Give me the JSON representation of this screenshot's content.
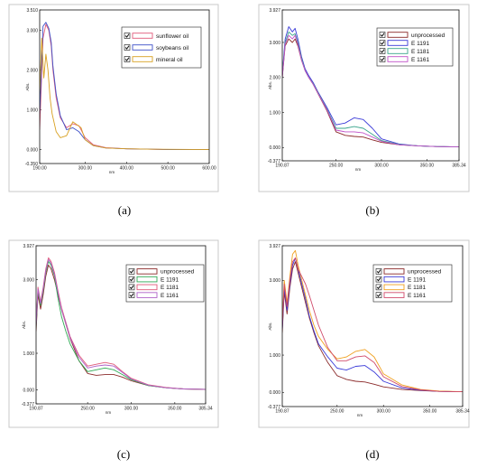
{
  "chart_data": [
    {
      "type": "line",
      "caption": "(a)",
      "ylabel": "Abs.",
      "xlabel": "nm",
      "xlim": [
        190.0,
        600.0
      ],
      "ylim": [
        -0.35,
        3.51
      ],
      "xticks": [
        {
          "v": 190.0,
          "label": "190.00"
        },
        {
          "v": 300.0,
          "label": "300.00"
        },
        {
          "v": 400.0,
          "label": "400.00"
        },
        {
          "v": 500.0,
          "label": "500.00"
        },
        {
          "v": 600.0,
          "label": "600.00"
        }
      ],
      "yticks": [
        {
          "v": 3.51,
          "label": "3.510"
        },
        {
          "v": 3.0,
          "label": "3.000"
        },
        {
          "v": 2.0,
          "label": "2.000"
        },
        {
          "v": 1.0,
          "label": "1.000"
        },
        {
          "v": 0.0,
          "label": "0.000"
        },
        {
          "v": -0.35,
          "label": "-0.350"
        }
      ],
      "series": [
        {
          "name": "sunflower oil",
          "color": "#e05a7a",
          "x": [
            190,
            198,
            205,
            212,
            218,
            222,
            230,
            240,
            255,
            270,
            285,
            300,
            320,
            350,
            400,
            450,
            500,
            600
          ],
          "y": [
            0.5,
            2.8,
            3.15,
            3.0,
            2.6,
            2.0,
            1.3,
            0.8,
            0.55,
            0.65,
            0.6,
            0.3,
            0.12,
            0.05,
            0.02,
            0.01,
            0.0,
            0.0
          ]
        },
        {
          "name": "soybeans oil",
          "color": "#3f51c8",
          "x": [
            190,
            198,
            205,
            212,
            218,
            222,
            230,
            240,
            255,
            270,
            285,
            300,
            320,
            350,
            400,
            450,
            500,
            600
          ],
          "y": [
            0.9,
            3.1,
            3.2,
            3.05,
            2.7,
            2.1,
            1.4,
            0.85,
            0.5,
            0.55,
            0.45,
            0.25,
            0.1,
            0.04,
            0.02,
            0.01,
            0.0,
            0.0
          ]
        },
        {
          "name": "mineral oil",
          "color": "#d8a020",
          "x": [
            190,
            195,
            200,
            205,
            210,
            215,
            220,
            230,
            240,
            255,
            270,
            290,
            300,
            320,
            350,
            400,
            450,
            600
          ],
          "y": [
            1.4,
            2.8,
            1.8,
            2.4,
            2.0,
            1.3,
            0.9,
            0.45,
            0.3,
            0.35,
            0.7,
            0.55,
            0.25,
            0.1,
            0.04,
            0.02,
            0.01,
            0.0
          ]
        }
      ]
    },
    {
      "type": "line",
      "caption": "(b)",
      "ylabel": "Abs.",
      "xlabel": "nm",
      "xlim": [
        190.87,
        385.34
      ],
      "ylim": [
        -0.377,
        3.927
      ],
      "xticks": [
        {
          "v": 190.87,
          "label": "190.87"
        },
        {
          "v": 250.0,
          "label": "250.00"
        },
        {
          "v": 300.0,
          "label": "300.00"
        },
        {
          "v": 350.0,
          "label": "350.00"
        },
        {
          "v": 385.34,
          "label": "385.34"
        }
      ],
      "yticks": [
        {
          "v": 3.927,
          "label": "3.927"
        },
        {
          "v": 3.0,
          "label": "3.000"
        },
        {
          "v": 2.0,
          "label": "2.000"
        },
        {
          "v": 1.0,
          "label": "1.000"
        },
        {
          "v": 0.0,
          "label": "0.000"
        },
        {
          "v": -0.377,
          "label": "-0.377"
        }
      ],
      "series": [
        {
          "name": "unprocessed",
          "color": "#8b2a2a",
          "x": [
            190.87,
            194,
            198,
            202,
            205,
            208,
            212,
            216,
            220,
            225,
            230,
            240,
            250,
            260,
            270,
            280,
            290,
            300,
            320,
            340,
            360,
            385.34
          ],
          "y": [
            2.0,
            2.9,
            3.1,
            3.0,
            3.1,
            2.9,
            2.5,
            2.2,
            2.0,
            1.8,
            1.55,
            1.05,
            0.45,
            0.35,
            0.32,
            0.3,
            0.22,
            0.15,
            0.08,
            0.05,
            0.03,
            0.02
          ]
        },
        {
          "name": "E 1191",
          "color": "#3a3ad8",
          "x": [
            190.87,
            194,
            198,
            202,
            205,
            208,
            212,
            216,
            220,
            225,
            230,
            240,
            250,
            260,
            270,
            280,
            290,
            300,
            320,
            340,
            360,
            385.34
          ],
          "y": [
            2.1,
            3.1,
            3.45,
            3.3,
            3.4,
            3.1,
            2.6,
            2.25,
            2.05,
            1.85,
            1.6,
            1.15,
            0.65,
            0.7,
            0.85,
            0.8,
            0.55,
            0.25,
            0.1,
            0.05,
            0.03,
            0.02
          ]
        },
        {
          "name": "E 1181",
          "color": "#3aa58c",
          "x": [
            190.87,
            194,
            198,
            202,
            205,
            208,
            212,
            216,
            220,
            225,
            230,
            240,
            250,
            260,
            270,
            280,
            290,
            300,
            320,
            340,
            360,
            385.34
          ],
          "y": [
            2.05,
            3.0,
            3.3,
            3.2,
            3.25,
            3.0,
            2.55,
            2.2,
            2.0,
            1.82,
            1.58,
            1.1,
            0.55,
            0.55,
            0.6,
            0.55,
            0.38,
            0.2,
            0.09,
            0.05,
            0.03,
            0.02
          ]
        },
        {
          "name": "E 1161",
          "color": "#c050c8",
          "x": [
            190.87,
            194,
            198,
            202,
            205,
            208,
            212,
            216,
            220,
            225,
            230,
            240,
            250,
            260,
            270,
            280,
            290,
            300,
            320,
            340,
            360,
            385.34
          ],
          "y": [
            2.0,
            2.95,
            3.2,
            3.1,
            3.2,
            2.95,
            2.5,
            2.2,
            2.0,
            1.8,
            1.56,
            1.08,
            0.5,
            0.45,
            0.45,
            0.42,
            0.3,
            0.18,
            0.08,
            0.05,
            0.03,
            0.02
          ]
        }
      ]
    },
    {
      "type": "line",
      "caption": "(c)",
      "ylabel": "Abs.",
      "xlabel": "nm",
      "xlim": [
        190.87,
        385.34
      ],
      "ylim": [
        -0.377,
        3.927
      ],
      "xticks": [
        {
          "v": 190.87,
          "label": "190.87"
        },
        {
          "v": 250.0,
          "label": "250.00"
        },
        {
          "v": 300.0,
          "label": "300.00"
        },
        {
          "v": 350.0,
          "label": "350.00"
        },
        {
          "v": 385.34,
          "label": "385.34"
        }
      ],
      "yticks": [
        {
          "v": 3.927,
          "label": "3.927"
        },
        {
          "v": 3.0,
          "label": "3.000"
        },
        {
          "v": 1.0,
          "label": "1.000"
        },
        {
          "v": 0.0,
          "label": "0.000"
        },
        {
          "v": -0.377,
          "label": "-0.377"
        }
      ],
      "series": [
        {
          "name": "unprocessed",
          "color": "#8b2a2a",
          "x": [
            190.87,
            193,
            196,
            199,
            202,
            205,
            208,
            212,
            216,
            220,
            225,
            230,
            240,
            250,
            260,
            270,
            280,
            290,
            300,
            320,
            340,
            360,
            385.34
          ],
          "y": [
            1.6,
            2.6,
            2.2,
            2.6,
            3.1,
            3.4,
            3.3,
            3.0,
            2.6,
            2.2,
            1.8,
            1.4,
            0.8,
            0.45,
            0.4,
            0.42,
            0.42,
            0.35,
            0.25,
            0.12,
            0.06,
            0.03,
            0.02
          ]
        },
        {
          "name": "E 1191",
          "color": "#2faa55",
          "x": [
            190.87,
            193,
            196,
            199,
            202,
            205,
            208,
            212,
            216,
            220,
            225,
            230,
            240,
            250,
            260,
            270,
            280,
            290,
            300,
            320,
            340,
            360,
            385.34
          ],
          "y": [
            1.7,
            2.7,
            2.3,
            2.7,
            3.2,
            3.5,
            3.4,
            3.1,
            2.5,
            2.0,
            1.6,
            1.25,
            0.8,
            0.5,
            0.55,
            0.6,
            0.55,
            0.42,
            0.28,
            0.12,
            0.06,
            0.03,
            0.02
          ]
        },
        {
          "name": "E 1181",
          "color": "#e05a7a",
          "x": [
            190.87,
            193,
            196,
            199,
            202,
            205,
            208,
            212,
            216,
            220,
            225,
            230,
            240,
            250,
            260,
            270,
            280,
            290,
            300,
            320,
            340,
            360,
            385.34
          ],
          "y": [
            1.8,
            2.8,
            2.4,
            2.8,
            3.3,
            3.6,
            3.5,
            3.2,
            2.7,
            2.25,
            1.85,
            1.45,
            0.95,
            0.65,
            0.7,
            0.75,
            0.7,
            0.5,
            0.32,
            0.14,
            0.07,
            0.03,
            0.02
          ]
        },
        {
          "name": "E 1161",
          "color": "#b060c8",
          "x": [
            190.87,
            193,
            196,
            199,
            202,
            205,
            208,
            212,
            216,
            220,
            225,
            230,
            240,
            250,
            260,
            270,
            280,
            290,
            300,
            320,
            340,
            360,
            385.34
          ],
          "y": [
            1.75,
            2.75,
            2.35,
            2.75,
            3.25,
            3.55,
            3.45,
            3.15,
            2.65,
            2.2,
            1.82,
            1.42,
            0.9,
            0.6,
            0.65,
            0.68,
            0.65,
            0.48,
            0.3,
            0.13,
            0.06,
            0.03,
            0.02
          ]
        }
      ]
    },
    {
      "type": "line",
      "caption": "(d)",
      "ylabel": "Abs.",
      "xlabel": "nm",
      "xlim": [
        190.87,
        385.34
      ],
      "ylim": [
        -0.377,
        3.927
      ],
      "xticks": [
        {
          "v": 190.87,
          "label": "190.87"
        },
        {
          "v": 250.0,
          "label": "250.00"
        },
        {
          "v": 300.0,
          "label": "300.00"
        },
        {
          "v": 350.0,
          "label": "350.00"
        },
        {
          "v": 385.34,
          "label": "385.34"
        }
      ],
      "yticks": [
        {
          "v": 3.927,
          "label": "3.927"
        },
        {
          "v": 3.0,
          "label": "3.000"
        },
        {
          "v": 1.0,
          "label": "1.000"
        },
        {
          "v": 0.0,
          "label": "0.000"
        },
        {
          "v": -0.377,
          "label": "-0.377"
        }
      ],
      "series": [
        {
          "name": "unprocessed",
          "color": "#8b2a2a",
          "x": [
            190.87,
            193,
            196,
            199,
            202,
            205,
            208,
            212,
            216,
            220,
            225,
            230,
            240,
            250,
            260,
            270,
            280,
            290,
            300,
            320,
            340,
            360,
            385.34
          ],
          "y": [
            1.6,
            2.7,
            2.1,
            2.8,
            3.3,
            3.5,
            3.2,
            2.8,
            2.4,
            2.0,
            1.6,
            1.25,
            0.8,
            0.45,
            0.35,
            0.3,
            0.28,
            0.22,
            0.15,
            0.08,
            0.05,
            0.03,
            0.02
          ]
        },
        {
          "name": "E 1191",
          "color": "#3a3ad8",
          "x": [
            190.87,
            193,
            196,
            199,
            202,
            205,
            208,
            212,
            216,
            220,
            225,
            230,
            240,
            250,
            260,
            270,
            280,
            290,
            300,
            320,
            340,
            360,
            385.34
          ],
          "y": [
            1.7,
            2.8,
            2.2,
            2.9,
            3.4,
            3.6,
            3.3,
            2.9,
            2.5,
            2.05,
            1.65,
            1.3,
            0.95,
            0.65,
            0.6,
            0.7,
            0.72,
            0.55,
            0.3,
            0.12,
            0.06,
            0.03,
            0.02
          ]
        },
        {
          "name": "E 1181",
          "color": "#f0a020",
          "x": [
            190.87,
            193,
            196,
            199,
            202,
            205,
            208,
            212,
            216,
            220,
            225,
            230,
            240,
            250,
            260,
            270,
            280,
            290,
            300,
            320,
            340,
            360,
            385.34
          ],
          "y": [
            1.9,
            3.0,
            2.4,
            3.1,
            3.7,
            3.8,
            3.4,
            3.0,
            2.6,
            2.2,
            1.8,
            1.5,
            1.15,
            0.9,
            0.95,
            1.1,
            1.15,
            0.95,
            0.5,
            0.2,
            0.08,
            0.04,
            0.02
          ]
        },
        {
          "name": "E 1161",
          "color": "#d04a6a",
          "x": [
            190.87,
            193,
            196,
            199,
            202,
            205,
            208,
            212,
            216,
            220,
            225,
            230,
            240,
            250,
            260,
            270,
            280,
            290,
            300,
            320,
            340,
            360,
            385.34
          ],
          "y": [
            1.8,
            2.9,
            2.3,
            3.0,
            3.5,
            3.6,
            3.3,
            3.1,
            2.9,
            2.6,
            2.2,
            1.8,
            1.2,
            0.85,
            0.85,
            0.95,
            0.98,
            0.8,
            0.42,
            0.16,
            0.07,
            0.03,
            0.02
          ]
        }
      ]
    }
  ]
}
